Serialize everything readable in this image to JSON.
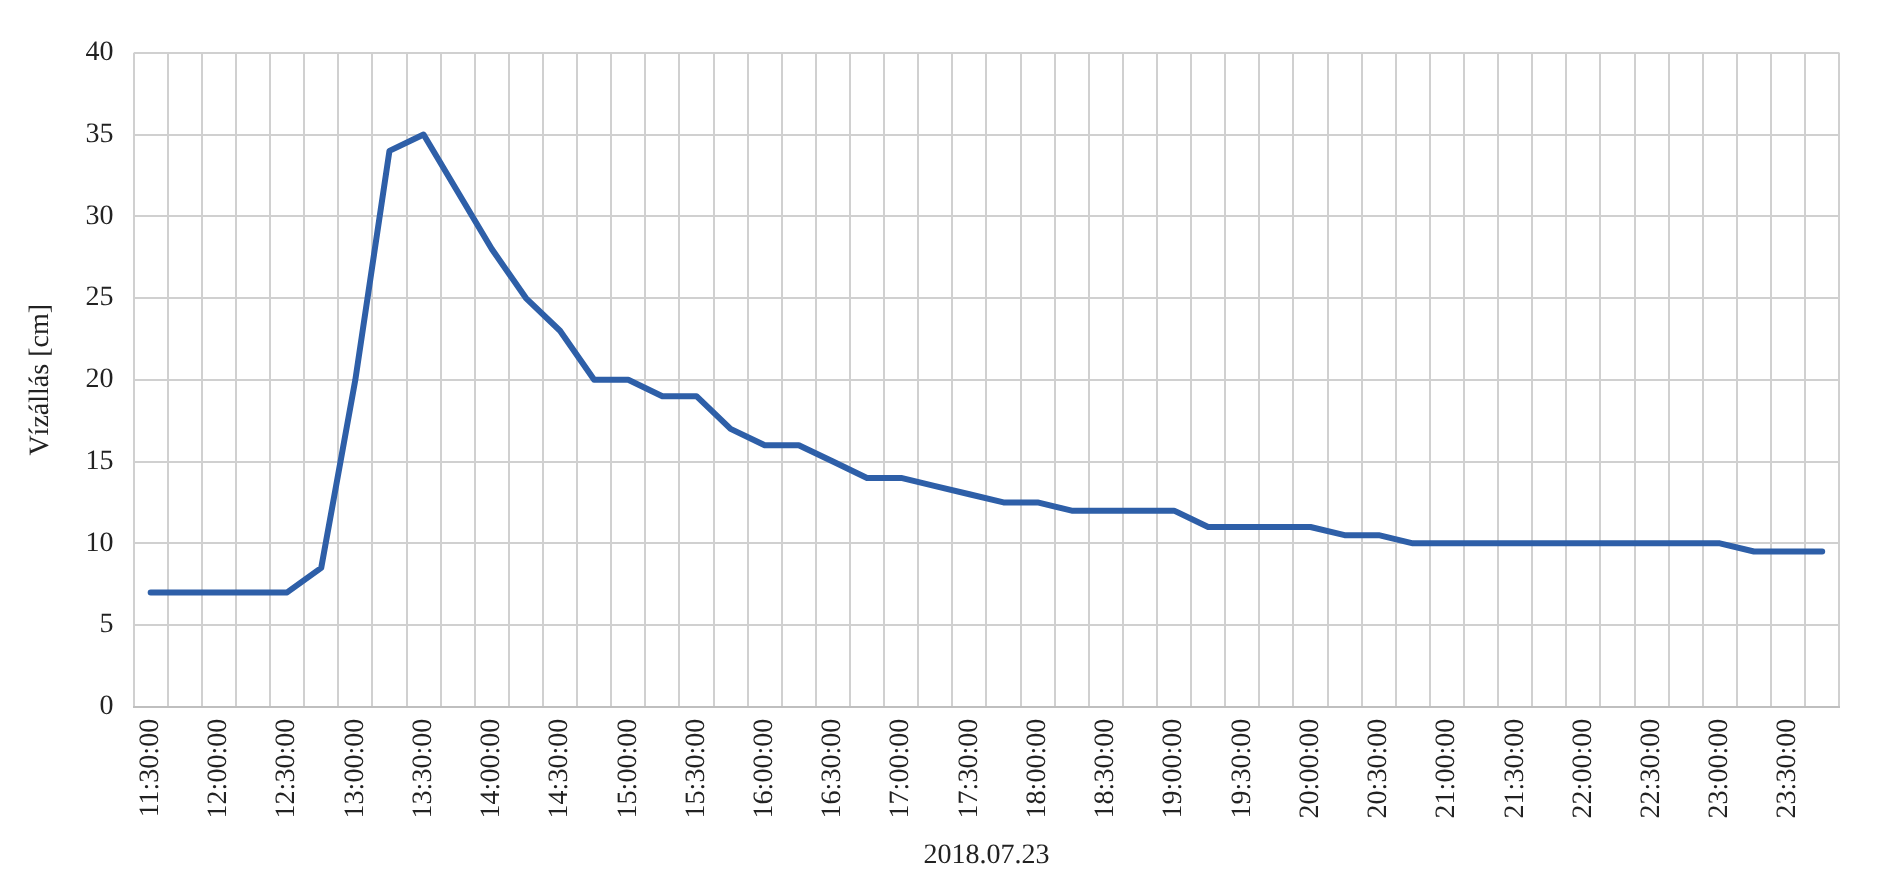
{
  "chart_data": {
    "type": "line",
    "xlabel": "2018.07.23",
    "ylabel": "Vízállás [cm]",
    "categories": [
      "11:30:00",
      null,
      "12:00:00",
      null,
      "12:30:00",
      null,
      "13:00:00",
      null,
      "13:30:00",
      null,
      "14:00:00",
      null,
      "14:30:00",
      null,
      "15:00:00",
      null,
      "15:30:00",
      null,
      "16:00:00",
      null,
      "16:30:00",
      null,
      "17:00:00",
      null,
      "17:30:00",
      null,
      "18:00:00",
      null,
      "18:30:00",
      null,
      "19:00:00",
      null,
      "19:30:00",
      null,
      "20:00:00",
      null,
      "20:30:00",
      null,
      "21:00:00",
      null,
      "21:30:00",
      null,
      "22:00:00",
      null,
      "22:30:00",
      null,
      "23:00:00",
      null,
      "23:30:00",
      null
    ],
    "series": [
      {
        "color": "#2e5fa8",
        "values": [
          7,
          7,
          7,
          7,
          7,
          8.5,
          20,
          34,
          35,
          31.5,
          28,
          25,
          23,
          20,
          20,
          19,
          19,
          17,
          16,
          16,
          15,
          14,
          14,
          13.5,
          13,
          12.5,
          12.5,
          12,
          12,
          12,
          12,
          11,
          11,
          11,
          11,
          10.5,
          10.5,
          10,
          10,
          10,
          10,
          10,
          10,
          10,
          10,
          10,
          10,
          9.5,
          9.5,
          9.5
        ]
      }
    ],
    "ylim": [
      0,
      40
    ],
    "yticks": [
      0,
      5,
      10,
      15,
      20,
      25,
      30,
      35,
      40
    ],
    "grid": true,
    "legend": false,
    "marker": "none",
    "line_style": "solid"
  }
}
